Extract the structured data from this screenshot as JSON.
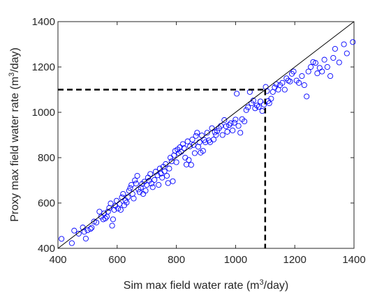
{
  "chart_data": {
    "type": "scatter",
    "xlabel_main": "Sim max field water rate (m",
    "xlabel_sup": "3",
    "xlabel_tail": "/day)",
    "ylabel_main": "Proxy max field water rate (m",
    "ylabel_sup": "3",
    "ylabel_tail": "/day)",
    "xlim": [
      400,
      1400
    ],
    "ylim": [
      400,
      1400
    ],
    "xticks": [
      "400",
      "600",
      "800",
      "1000",
      "1200",
      "1400"
    ],
    "yticks": [
      "400",
      "600",
      "800",
      "1000",
      "1200",
      "1400"
    ],
    "grid": false,
    "marker_color": "#0000ff",
    "reference_line": {
      "from": [
        400,
        400
      ],
      "to": [
        1400,
        1400
      ],
      "color": "#000000"
    },
    "threshold_lines": {
      "x": 1100,
      "y": 1100,
      "color": "#000000",
      "style": "dashed"
    },
    "points": [
      [
        412,
        442
      ],
      [
        447,
        423
      ],
      [
        455,
        478
      ],
      [
        470,
        465
      ],
      [
        484,
        492
      ],
      [
        489,
        473
      ],
      [
        494,
        443
      ],
      [
        500,
        480
      ],
      [
        510,
        486
      ],
      [
        514,
        491
      ],
      [
        522,
        518
      ],
      [
        530,
        514
      ],
      [
        540,
        562
      ],
      [
        546,
        540
      ],
      [
        553,
        528
      ],
      [
        556,
        554
      ],
      [
        560,
        532
      ],
      [
        565,
        540
      ],
      [
        569,
        562
      ],
      [
        573,
        578
      ],
      [
        578,
        598
      ],
      [
        583,
        500
      ],
      [
        586,
        528
      ],
      [
        590,
        570
      ],
      [
        594,
        588
      ],
      [
        598,
        610
      ],
      [
        603,
        576
      ],
      [
        608,
        596
      ],
      [
        612,
        570
      ],
      [
        616,
        625
      ],
      [
        620,
        640
      ],
      [
        624,
        590
      ],
      [
        628,
        612
      ],
      [
        632,
        602
      ],
      [
        636,
        626
      ],
      [
        640,
        654
      ],
      [
        644,
        666
      ],
      [
        648,
        680
      ],
      [
        652,
        640
      ],
      [
        656,
        620
      ],
      [
        660,
        700
      ],
      [
        664,
        686
      ],
      [
        668,
        720
      ],
      [
        672,
        660
      ],
      [
        676,
        648
      ],
      [
        680,
        668
      ],
      [
        684,
        684
      ],
      [
        688,
        640
      ],
      [
        692,
        694
      ],
      [
        696,
        654
      ],
      [
        700,
        680
      ],
      [
        704,
        712
      ],
      [
        708,
        698
      ],
      [
        712,
        728
      ],
      [
        716,
        686
      ],
      [
        720,
        670
      ],
      [
        726,
        702
      ],
      [
        730,
        738
      ],
      [
        736,
        722
      ],
      [
        740,
        680
      ],
      [
        744,
        752
      ],
      [
        748,
        730
      ],
      [
        752,
        712
      ],
      [
        756,
        760
      ],
      [
        760,
        740
      ],
      [
        764,
        772
      ],
      [
        768,
        720
      ],
      [
        772,
        688
      ],
      [
        776,
        752
      ],
      [
        780,
        800
      ],
      [
        784,
        784
      ],
      [
        788,
        696
      ],
      [
        792,
        810
      ],
      [
        796,
        830
      ],
      [
        800,
        780
      ],
      [
        804,
        836
      ],
      [
        808,
        820
      ],
      [
        812,
        846
      ],
      [
        816,
        826
      ],
      [
        822,
        860
      ],
      [
        826,
        842
      ],
      [
        830,
        800
      ],
      [
        834,
        770
      ],
      [
        838,
        872
      ],
      [
        842,
        790
      ],
      [
        846,
        850
      ],
      [
        850,
        768
      ],
      [
        854,
        880
      ],
      [
        858,
        856
      ],
      [
        862,
        820
      ],
      [
        866,
        896
      ],
      [
        870,
        910
      ],
      [
        874,
        848
      ],
      [
        878,
        868
      ],
      [
        882,
        822
      ],
      [
        886,
        898
      ],
      [
        890,
        830
      ],
      [
        894,
        878
      ],
      [
        898,
        868
      ],
      [
        904,
        910
      ],
      [
        910,
        876
      ],
      [
        914,
        868
      ],
      [
        920,
        930
      ],
      [
        926,
        880
      ],
      [
        930,
        912
      ],
      [
        934,
        900
      ],
      [
        938,
        918
      ],
      [
        944,
        930
      ],
      [
        950,
        940
      ],
      [
        956,
        900
      ],
      [
        962,
        966
      ],
      [
        968,
        938
      ],
      [
        972,
        914
      ],
      [
        978,
        944
      ],
      [
        984,
        952
      ],
      [
        990,
        920
      ],
      [
        996,
        954
      ],
      [
        1000,
        968
      ],
      [
        1004,
        1082
      ],
      [
        1010,
        940
      ],
      [
        1016,
        910
      ],
      [
        1022,
        970
      ],
      [
        1030,
        960
      ],
      [
        1036,
        1010
      ],
      [
        1042,
        1022
      ],
      [
        1048,
        1090
      ],
      [
        1054,
        1040
      ],
      [
        1060,
        1052
      ],
      [
        1066,
        1018
      ],
      [
        1072,
        1030
      ],
      [
        1078,
        1024
      ],
      [
        1084,
        1048
      ],
      [
        1090,
        1006
      ],
      [
        1096,
        1034
      ],
      [
        1102,
        1112
      ],
      [
        1106,
        1094
      ],
      [
        1110,
        1050
      ],
      [
        1114,
        1040
      ],
      [
        1120,
        1060
      ],
      [
        1126,
        1090
      ],
      [
        1132,
        1110
      ],
      [
        1138,
        1124
      ],
      [
        1144,
        1100
      ],
      [
        1150,
        1120
      ],
      [
        1158,
        1130
      ],
      [
        1166,
        1100
      ],
      [
        1172,
        1150
      ],
      [
        1178,
        1140
      ],
      [
        1184,
        1136
      ],
      [
        1190,
        1170
      ],
      [
        1196,
        1180
      ],
      [
        1206,
        1140
      ],
      [
        1214,
        1130
      ],
      [
        1224,
        1160
      ],
      [
        1232,
        1120
      ],
      [
        1240,
        1070
      ],
      [
        1246,
        1180
      ],
      [
        1254,
        1200
      ],
      [
        1262,
        1222
      ],
      [
        1270,
        1218
      ],
      [
        1276,
        1172
      ],
      [
        1284,
        1196
      ],
      [
        1292,
        1180
      ],
      [
        1300,
        1232
      ],
      [
        1310,
        1200
      ],
      [
        1320,
        1160
      ],
      [
        1330,
        1240
      ],
      [
        1336,
        1280
      ],
      [
        1350,
        1220
      ],
      [
        1366,
        1300
      ],
      [
        1376,
        1260
      ],
      [
        1396,
        1310
      ]
    ]
  }
}
